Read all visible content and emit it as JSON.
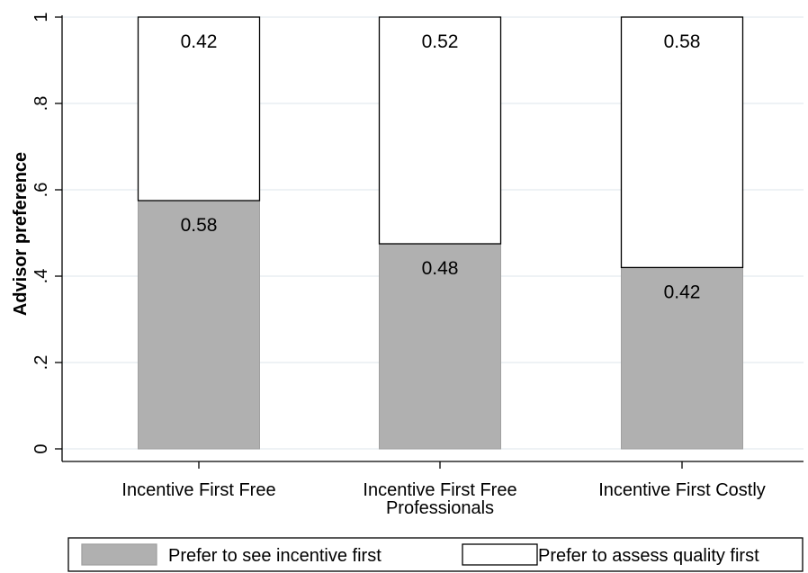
{
  "chart_data": {
    "type": "bar",
    "stacked": true,
    "ylabel": "Advisor preference",
    "ylim": [
      0,
      1
    ],
    "yticks": [
      {
        "value": 0,
        "label": "0"
      },
      {
        "value": 0.2,
        "label": ".2"
      },
      {
        "value": 0.4,
        "label": ".4"
      },
      {
        "value": 0.6,
        "label": ".6"
      },
      {
        "value": 0.8,
        "label": ".8"
      },
      {
        "value": 1,
        "label": "1"
      }
    ],
    "grid": true,
    "categories": [
      [
        "Incentive First Free"
      ],
      [
        "Incentive First Free",
        "Professionals"
      ],
      [
        "Incentive First Costly"
      ]
    ],
    "series": [
      {
        "name": "Prefer to see incentive first",
        "color": "#b0b0b0",
        "values": [
          0.575,
          0.475,
          0.42
        ],
        "labels": [
          "0.58",
          "0.48",
          "0.42"
        ]
      },
      {
        "name": "Prefer to assess quality first",
        "color": "#ffffff",
        "values": [
          0.425,
          0.525,
          0.58
        ],
        "labels": [
          "0.42",
          "0.52",
          "0.58"
        ]
      }
    ],
    "legend_position": "bottom"
  }
}
